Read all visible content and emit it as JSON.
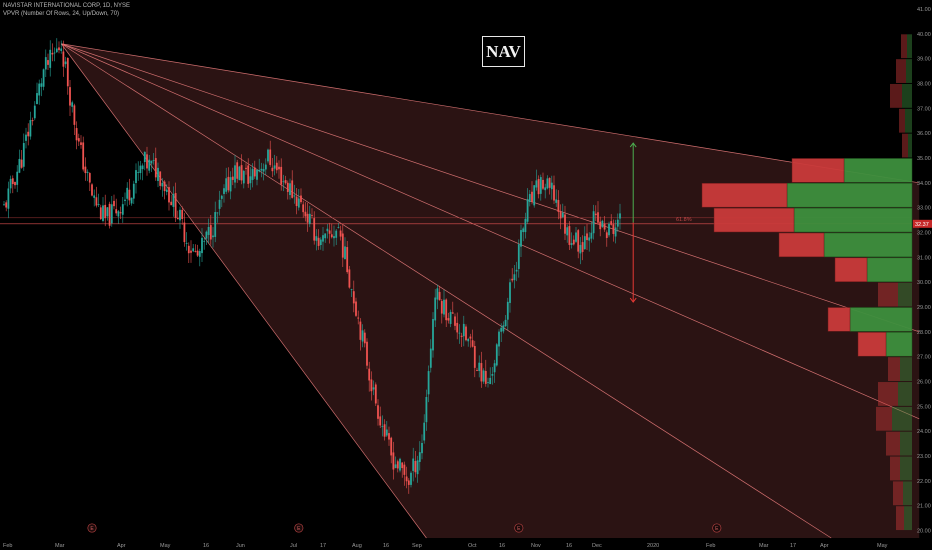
{
  "header": {
    "symbol_line": "NAVISTAR INTERNATIONAL CORP, 1D, NYSE",
    "indicator_line": "VPVR (Number Of Rows, 24, Up/Down, 70)"
  },
  "ticker_label": "NAV",
  "colors": {
    "background": "#000000",
    "up_candle": "#26a69a",
    "down_candle": "#ef5350",
    "fan_line": "#f08080",
    "fan_fill": "#3a1a1a",
    "vp_up": "#3d8f3d",
    "vp_down": "#c93a3a",
    "target_up": "#4caf50",
    "target_down": "#e53935"
  },
  "chart_data": {
    "type": "candlestick",
    "y_axis_labels": [
      "41.00",
      "40.00",
      "39.00",
      "38.00",
      "37.00",
      "36.00",
      "35.00",
      "34.00",
      "33.00",
      "32.00",
      "31.00",
      "30.00",
      "29.00",
      "28.00",
      "27.00",
      "26.00",
      "25.00",
      "24.00",
      "23.00",
      "22.00",
      "21.00",
      "20.00"
    ],
    "ylim": [
      19.7,
      41.2
    ],
    "x_axis_labels": [
      "Feb",
      "Mar",
      "Apr",
      "May",
      "16",
      "Jun",
      "Jul",
      "17",
      "Aug",
      "16",
      "Sep",
      "Oct",
      "16",
      "Nov",
      "16",
      "Dec",
      "2020",
      "Feb",
      "Mar",
      "17",
      "Apr",
      "May"
    ],
    "current_price": "32.37",
    "level_label": "61.8%",
    "level_price": 32.35,
    "close_path": [
      {
        "t": 0,
        "p": 33.0
      },
      {
        "t": 4,
        "p": 35.0
      },
      {
        "t": 9,
        "p": 38.5
      },
      {
        "t": 13,
        "p": 39.6
      },
      {
        "t": 17,
        "p": 35.5
      },
      {
        "t": 20,
        "p": 33.5
      },
      {
        "t": 23,
        "p": 32.5
      },
      {
        "t": 27,
        "p": 33.2
      },
      {
        "t": 32,
        "p": 34.8
      },
      {
        "t": 35,
        "p": 34.5
      },
      {
        "t": 39,
        "p": 33.0
      },
      {
        "t": 42,
        "p": 31.5
      },
      {
        "t": 44,
        "p": 31.0
      },
      {
        "t": 48,
        "p": 32.5
      },
      {
        "t": 52,
        "p": 34.5
      },
      {
        "t": 56,
        "p": 34.2
      },
      {
        "t": 60,
        "p": 35.0
      },
      {
        "t": 64,
        "p": 34.0
      },
      {
        "t": 68,
        "p": 33.0
      },
      {
        "t": 72,
        "p": 31.5
      },
      {
        "t": 76,
        "p": 32.2
      },
      {
        "t": 80,
        "p": 29.0
      },
      {
        "t": 84,
        "p": 25.5
      },
      {
        "t": 88,
        "p": 23.0
      },
      {
        "t": 92,
        "p": 22.0
      },
      {
        "t": 95,
        "p": 23.5
      },
      {
        "t": 98,
        "p": 29.5
      },
      {
        "t": 102,
        "p": 28.5
      },
      {
        "t": 106,
        "p": 27.5
      },
      {
        "t": 108,
        "p": 26.5
      },
      {
        "t": 110,
        "p": 25.8
      },
      {
        "t": 113,
        "p": 28.0
      },
      {
        "t": 116,
        "p": 30.5
      },
      {
        "t": 119,
        "p": 33.0
      },
      {
        "t": 122,
        "p": 34.0
      },
      {
        "t": 125,
        "p": 33.5
      },
      {
        "t": 128,
        "p": 32.0
      },
      {
        "t": 131,
        "p": 31.5
      },
      {
        "t": 134,
        "p": 32.5
      },
      {
        "t": 137,
        "p": 32.0
      },
      {
        "t": 140,
        "p": 32.4
      }
    ],
    "fan_lines": [
      {
        "from_t": 13,
        "from_p": 39.6,
        "to_t": 208,
        "to_p": 34.0
      },
      {
        "from_t": 13,
        "from_p": 39.6,
        "to_t": 208,
        "to_p": 28.0
      },
      {
        "from_t": 13,
        "from_p": 39.6,
        "to_t": 208,
        "to_p": 24.5
      },
      {
        "from_t": 13,
        "from_p": 39.6,
        "to_t": 188,
        "to_p": 19.7
      },
      {
        "from_t": 13,
        "from_p": 39.6,
        "to_t": 96,
        "to_p": 19.7
      }
    ],
    "projection": {
      "t": 143,
      "from_p": 32.4,
      "up_to": 35.6,
      "down_to": 29.2
    },
    "volume_profile": [
      {
        "price": 39.5,
        "up": 5,
        "down": 6
      },
      {
        "price": 38.5,
        "up": 6,
        "down": 10
      },
      {
        "price": 37.5,
        "up": 10,
        "down": 12
      },
      {
        "price": 36.5,
        "up": 7,
        "down": 6
      },
      {
        "price": 35.5,
        "up": 4,
        "down": 6
      },
      {
        "price": 34.5,
        "up": 68,
        "down": 52
      },
      {
        "price": 33.5,
        "up": 125,
        "down": 85
      },
      {
        "price": 32.5,
        "up": 118,
        "down": 80
      },
      {
        "price": 31.5,
        "up": 88,
        "down": 45
      },
      {
        "price": 30.5,
        "up": 45,
        "down": 32
      },
      {
        "price": 29.5,
        "up": 14,
        "down": 20
      },
      {
        "price": 28.5,
        "up": 62,
        "down": 22
      },
      {
        "price": 27.5,
        "up": 26,
        "down": 28
      },
      {
        "price": 26.5,
        "up": 12,
        "down": 12
      },
      {
        "price": 25.5,
        "up": 14,
        "down": 20
      },
      {
        "price": 24.5,
        "up": 20,
        "down": 16
      },
      {
        "price": 23.5,
        "up": 12,
        "down": 14
      },
      {
        "price": 22.5,
        "up": 12,
        "down": 10
      },
      {
        "price": 21.5,
        "up": 9,
        "down": 10
      },
      {
        "price": 20.5,
        "up": 8,
        "down": 8
      }
    ],
    "event_markers": [
      {
        "t": 20,
        "label": "E"
      },
      {
        "t": 67,
        "label": "E"
      },
      {
        "t": 117,
        "label": "E"
      },
      {
        "t": 162,
        "label": "E"
      }
    ]
  }
}
